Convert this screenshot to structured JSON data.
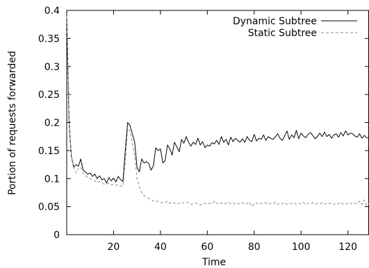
{
  "chart_data": {
    "type": "line",
    "xlabel": "Time",
    "ylabel": "Portion of requests forwarded",
    "xlim": [
      0,
      129
    ],
    "ylim": [
      0,
      0.4
    ],
    "x_ticks": [
      20,
      40,
      60,
      80,
      100,
      120
    ],
    "x_tick_labels": [
      "20",
      "40",
      "60",
      "80",
      "100",
      "120"
    ],
    "y_ticks": [
      0,
      0.05,
      0.1,
      0.15,
      0.2,
      0.25,
      0.3,
      0.35,
      0.4
    ],
    "y_tick_labels": [
      "0",
      "0.05",
      "0.1",
      "0.15",
      "0.2",
      "0.25",
      "0.3",
      "0.35",
      "0.4"
    ],
    "grid": false,
    "legend_position": "top-right",
    "series": [
      {
        "name": "Dynamic Subtree",
        "style": "solid",
        "color": "#000000",
        "x": [
          0,
          1,
          2,
          3,
          4,
          5,
          6,
          7,
          8,
          9,
          10,
          11,
          12,
          13,
          14,
          15,
          16,
          17,
          18,
          19,
          20,
          21,
          22,
          23,
          24,
          25,
          26,
          27,
          28,
          29,
          30,
          31,
          32,
          33,
          34,
          35,
          36,
          37,
          38,
          39,
          40,
          41,
          42,
          43,
          44,
          45,
          46,
          47,
          48,
          49,
          50,
          51,
          52,
          53,
          54,
          55,
          56,
          57,
          58,
          59,
          60,
          61,
          62,
          63,
          64,
          65,
          66,
          67,
          68,
          69,
          70,
          71,
          72,
          73,
          74,
          75,
          76,
          77,
          78,
          79,
          80,
          81,
          82,
          83,
          84,
          85,
          86,
          87,
          88,
          89,
          90,
          91,
          92,
          93,
          94,
          95,
          96,
          97,
          98,
          99,
          100,
          101,
          102,
          103,
          104,
          105,
          106,
          107,
          108,
          109,
          110,
          111,
          112,
          113,
          114,
          115,
          116,
          117,
          118,
          119,
          120,
          121,
          122,
          123,
          124,
          125,
          126,
          127,
          128,
          129
        ],
        "y": [
          0.39,
          0.2,
          0.14,
          0.12,
          0.125,
          0.122,
          0.135,
          0.115,
          0.112,
          0.108,
          0.11,
          0.104,
          0.108,
          0.1,
          0.105,
          0.098,
          0.1,
          0.092,
          0.102,
          0.096,
          0.101,
          0.094,
          0.104,
          0.098,
          0.095,
          0.15,
          0.2,
          0.195,
          0.18,
          0.165,
          0.12,
          0.112,
          0.135,
          0.128,
          0.13,
          0.127,
          0.115,
          0.123,
          0.155,
          0.15,
          0.153,
          0.128,
          0.132,
          0.16,
          0.153,
          0.142,
          0.165,
          0.156,
          0.148,
          0.17,
          0.163,
          0.175,
          0.165,
          0.158,
          0.165,
          0.161,
          0.172,
          0.16,
          0.166,
          0.155,
          0.16,
          0.158,
          0.164,
          0.162,
          0.168,
          0.161,
          0.175,
          0.165,
          0.17,
          0.16,
          0.174,
          0.166,
          0.172,
          0.168,
          0.165,
          0.171,
          0.165,
          0.175,
          0.168,
          0.166,
          0.179,
          0.167,
          0.172,
          0.17,
          0.178,
          0.168,
          0.175,
          0.172,
          0.17,
          0.174,
          0.18,
          0.172,
          0.168,
          0.176,
          0.185,
          0.17,
          0.178,
          0.173,
          0.186,
          0.171,
          0.181,
          0.176,
          0.173,
          0.179,
          0.182,
          0.177,
          0.171,
          0.175,
          0.181,
          0.175,
          0.183,
          0.175,
          0.179,
          0.172,
          0.178,
          0.18,
          0.174,
          0.182,
          0.176,
          0.185,
          0.178,
          0.181,
          0.18,
          0.176,
          0.174,
          0.18,
          0.172,
          0.177,
          0.173,
          0.172
        ]
      },
      {
        "name": "Static Subtree",
        "style": "dashed",
        "color": "#888888",
        "x": [
          0,
          1,
          2,
          3,
          4,
          5,
          6,
          7,
          8,
          9,
          10,
          11,
          12,
          13,
          14,
          15,
          16,
          17,
          18,
          19,
          20,
          21,
          22,
          23,
          24,
          25,
          26,
          27,
          28,
          29,
          30,
          31,
          32,
          33,
          34,
          35,
          36,
          37,
          38,
          39,
          40,
          41,
          42,
          43,
          44,
          45,
          46,
          47,
          48,
          49,
          50,
          51,
          52,
          53,
          54,
          55,
          56,
          57,
          58,
          59,
          60,
          61,
          62,
          63,
          64,
          65,
          66,
          67,
          68,
          69,
          70,
          71,
          72,
          73,
          74,
          75,
          76,
          77,
          78,
          79,
          80,
          81,
          82,
          83,
          84,
          85,
          86,
          87,
          88,
          89,
          90,
          91,
          92,
          93,
          94,
          95,
          96,
          97,
          98,
          99,
          100,
          101,
          102,
          103,
          104,
          105,
          106,
          107,
          108,
          109,
          110,
          111,
          112,
          113,
          114,
          115,
          116,
          117,
          118,
          119,
          120,
          121,
          122,
          123,
          124,
          125,
          126,
          127,
          128,
          129
        ],
        "y": [
          0.39,
          0.2,
          0.14,
          0.12,
          0.11,
          0.118,
          0.12,
          0.11,
          0.105,
          0.102,
          0.1,
          0.098,
          0.096,
          0.093,
          0.095,
          0.092,
          0.09,
          0.09,
          0.092,
          0.089,
          0.09,
          0.088,
          0.089,
          0.087,
          0.086,
          0.13,
          0.19,
          0.185,
          0.165,
          0.14,
          0.1,
          0.085,
          0.075,
          0.07,
          0.066,
          0.065,
          0.063,
          0.06,
          0.059,
          0.06,
          0.057,
          0.058,
          0.057,
          0.06,
          0.056,
          0.058,
          0.056,
          0.057,
          0.055,
          0.058,
          0.056,
          0.058,
          0.057,
          0.054,
          0.055,
          0.057,
          0.054,
          0.053,
          0.055,
          0.056,
          0.054,
          0.056,
          0.055,
          0.06,
          0.056,
          0.055,
          0.057,
          0.054,
          0.056,
          0.058,
          0.055,
          0.057,
          0.054,
          0.056,
          0.055,
          0.057,
          0.054,
          0.056,
          0.058,
          0.05,
          0.055,
          0.057,
          0.054,
          0.056,
          0.055,
          0.057,
          0.054,
          0.056,
          0.055,
          0.058,
          0.054,
          0.056,
          0.055,
          0.057,
          0.054,
          0.056,
          0.055,
          0.057,
          0.054,
          0.056,
          0.055,
          0.058,
          0.054,
          0.056,
          0.055,
          0.057,
          0.054,
          0.056,
          0.055,
          0.057,
          0.054,
          0.056,
          0.055,
          0.057,
          0.054,
          0.056,
          0.055,
          0.058,
          0.054,
          0.056,
          0.055,
          0.057,
          0.054,
          0.056,
          0.055,
          0.06,
          0.054,
          0.062,
          0.052,
          0.056
        ]
      }
    ]
  }
}
